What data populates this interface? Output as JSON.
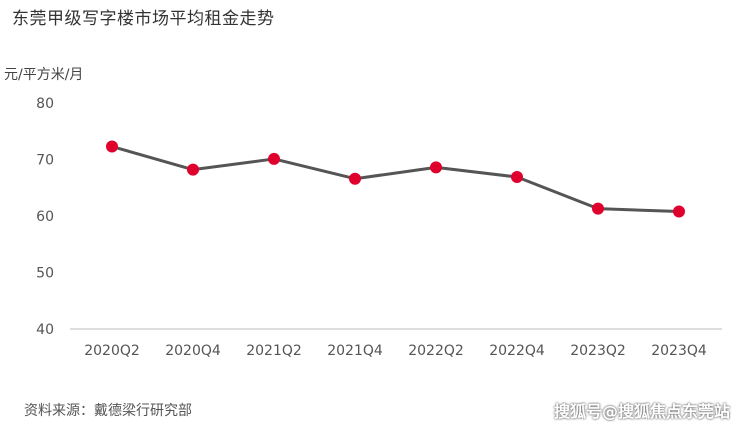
{
  "header": {
    "title": "东莞甲级写字楼市场平均租金走势",
    "unit": "元/平方米/月"
  },
  "footer": {
    "source": "资料来源：戴德梁行研究部",
    "watermark": "搜狐号@搜狐焦点东莞站"
  },
  "chart_data": {
    "type": "line",
    "title": "东莞甲级写字楼市场平均租金走势",
    "ylabel": "元/平方米/月",
    "xlabel": "",
    "categories": [
      "2020Q2",
      "2020Q4",
      "2021Q2",
      "2021Q4",
      "2022Q2",
      "2022Q4",
      "2023Q2",
      "2023Q4"
    ],
    "series": [
      {
        "values": [
          72.3,
          68.2,
          70.1,
          66.6,
          68.6,
          66.9,
          61.3,
          60.8
        ]
      }
    ],
    "yticks": [
      40,
      50,
      60,
      70,
      80
    ],
    "ylim": [
      40,
      80
    ],
    "grid": false,
    "colors": {
      "line": "#555555",
      "marker": "#e0002d",
      "axis": "#bbbbbb"
    }
  }
}
